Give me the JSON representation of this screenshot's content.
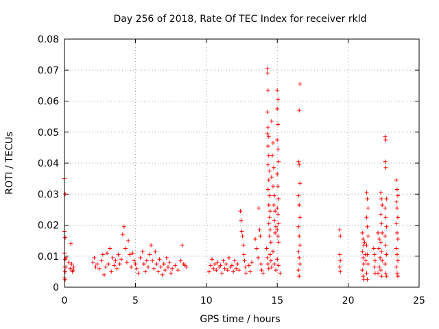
{
  "chart_data": {
    "type": "scatter",
    "title": "Day 256 of 2018, Rate Of TEC Index for receiver rkld",
    "xlabel": "GPS time / hours",
    "ylabel": "ROTI / TECUs",
    "xlim": [
      0,
      25
    ],
    "ylim": [
      0,
      0.08
    ],
    "xticks": [
      "0",
      "5",
      "10",
      "15",
      "20",
      "25"
    ],
    "yticks": [
      "0",
      "0.01",
      "0.02",
      "0.03",
      "0.04",
      "0.05",
      "0.06",
      "0.07",
      "0.08"
    ],
    "grid": true,
    "marker": "+",
    "color": "#ff0000",
    "series": [
      {
        "name": "ROTI",
        "points": [
          [
            0.0,
            0.035
          ],
          [
            0.0,
            0.018
          ],
          [
            0.05,
            0.016
          ],
          [
            0.0,
            0.011
          ],
          [
            0.05,
            0.009
          ],
          [
            0.0,
            0.0065
          ],
          [
            0.05,
            0.005
          ],
          [
            0.0,
            0.003
          ],
          [
            0.05,
            0.0025
          ],
          [
            0.1,
            0.0065
          ],
          [
            0.05,
            0.03
          ],
          [
            0.1,
            0.0095
          ],
          [
            0.3,
            0.008
          ],
          [
            0.4,
            0.006
          ],
          [
            0.45,
            0.014
          ],
          [
            0.5,
            0.0075
          ],
          [
            0.55,
            0.005
          ],
          [
            0.6,
            0.0055
          ],
          [
            0.65,
            0.0065
          ],
          [
            2.0,
            0.008
          ],
          [
            2.1,
            0.0095
          ],
          [
            2.2,
            0.0065
          ],
          [
            2.3,
            0.0075
          ],
          [
            2.45,
            0.006
          ],
          [
            2.6,
            0.0085
          ],
          [
            2.7,
            0.0105
          ],
          [
            2.8,
            0.004
          ],
          [
            2.9,
            0.0065
          ],
          [
            3.0,
            0.011
          ],
          [
            3.1,
            0.0075
          ],
          [
            3.2,
            0.0125
          ],
          [
            3.3,
            0.005
          ],
          [
            3.4,
            0.0095
          ],
          [
            3.5,
            0.007
          ],
          [
            3.6,
            0.0085
          ],
          [
            3.7,
            0.006
          ],
          [
            3.8,
            0.0105
          ],
          [
            3.9,
            0.0075
          ],
          [
            4.0,
            0.009
          ],
          [
            4.1,
            0.017
          ],
          [
            4.2,
            0.0195
          ],
          [
            4.3,
            0.0125
          ],
          [
            4.4,
            0.008
          ],
          [
            4.5,
            0.015
          ],
          [
            4.6,
            0.0105
          ],
          [
            4.7,
            0.0065
          ],
          [
            4.8,
            0.011
          ],
          [
            4.9,
            0.0085
          ],
          [
            5.0,
            0.0075
          ],
          [
            5.1,
            0.006
          ],
          [
            5.2,
            0.0045
          ],
          [
            5.35,
            0.0095
          ],
          [
            5.5,
            0.0115
          ],
          [
            5.6,
            0.0075
          ],
          [
            5.7,
            0.005
          ],
          [
            5.8,
            0.0085
          ],
          [
            5.9,
            0.0065
          ],
          [
            6.0,
            0.0105
          ],
          [
            6.1,
            0.0135
          ],
          [
            6.2,
            0.0085
          ],
          [
            6.3,
            0.006
          ],
          [
            6.4,
            0.0115
          ],
          [
            6.5,
            0.0075
          ],
          [
            6.6,
            0.005
          ],
          [
            6.7,
            0.009
          ],
          [
            6.8,
            0.0065
          ],
          [
            6.9,
            0.004
          ],
          [
            7.0,
            0.0075
          ],
          [
            7.1,
            0.0055
          ],
          [
            7.2,
            0.0095
          ],
          [
            7.3,
            0.0065
          ],
          [
            7.4,
            0.008
          ],
          [
            7.5,
            0.0045
          ],
          [
            7.6,
            0.006
          ],
          [
            7.8,
            0.007
          ],
          [
            8.0,
            0.0055
          ],
          [
            8.2,
            0.0085
          ],
          [
            8.3,
            0.0135
          ],
          [
            8.4,
            0.0075
          ],
          [
            8.5,
            0.007
          ],
          [
            8.6,
            0.0065
          ],
          [
            10.2,
            0.005
          ],
          [
            10.3,
            0.007
          ],
          [
            10.4,
            0.009
          ],
          [
            10.5,
            0.006
          ],
          [
            10.6,
            0.0075
          ],
          [
            10.7,
            0.0055
          ],
          [
            10.8,
            0.008
          ],
          [
            10.9,
            0.0065
          ],
          [
            11.0,
            0.007
          ],
          [
            11.1,
            0.0045
          ],
          [
            11.2,
            0.0085
          ],
          [
            11.3,
            0.006
          ],
          [
            11.4,
            0.0075
          ],
          [
            11.5,
            0.0055
          ],
          [
            11.6,
            0.0095
          ],
          [
            11.7,
            0.0065
          ],
          [
            11.8,
            0.007
          ],
          [
            11.9,
            0.005
          ],
          [
            12.0,
            0.0085
          ],
          [
            12.1,
            0.006
          ],
          [
            12.2,
            0.0075
          ],
          [
            12.3,
            0.0055
          ],
          [
            12.4,
            0.0245
          ],
          [
            12.45,
            0.0215
          ],
          [
            12.5,
            0.018
          ],
          [
            12.55,
            0.0165
          ],
          [
            12.6,
            0.0135
          ],
          [
            12.65,
            0.0105
          ],
          [
            12.7,
            0.0085
          ],
          [
            12.75,
            0.0065
          ],
          [
            12.8,
            0.0045
          ],
          [
            13.0,
            0.007
          ],
          [
            13.1,
            0.005
          ],
          [
            13.2,
            0.008
          ],
          [
            13.45,
            0.0155
          ],
          [
            13.55,
            0.0125
          ],
          [
            13.65,
            0.0095
          ],
          [
            13.7,
            0.0255
          ],
          [
            13.75,
            0.0185
          ],
          [
            13.8,
            0.0165
          ],
          [
            13.85,
            0.0075
          ],
          [
            13.9,
            0.0055
          ],
          [
            14.0,
            0.0045
          ],
          [
            14.25,
            0.0125
          ],
          [
            14.3,
            0.0095
          ],
          [
            14.35,
            0.0075
          ],
          [
            14.4,
            0.006
          ],
          [
            14.5,
            0.0105
          ],
          [
            14.55,
            0.0085
          ],
          [
            14.6,
            0.0065
          ],
          [
            14.7,
            0.0115
          ],
          [
            14.8,
            0.0075
          ],
          [
            14.9,
            0.0055
          ],
          [
            15.0,
            0.009
          ],
          [
            15.1,
            0.007
          ],
          [
            15.2,
            0.0045
          ],
          [
            14.3,
            0.0705
          ],
          [
            14.32,
            0.069
          ],
          [
            14.35,
            0.0635
          ],
          [
            14.3,
            0.0565
          ],
          [
            14.35,
            0.0515
          ],
          [
            14.3,
            0.0495
          ],
          [
            14.4,
            0.0485
          ],
          [
            14.35,
            0.0455
          ],
          [
            14.4,
            0.0425
          ],
          [
            14.35,
            0.0395
          ],
          [
            14.45,
            0.0375
          ],
          [
            14.4,
            0.0345
          ],
          [
            14.35,
            0.0315
          ],
          [
            14.45,
            0.0295
          ],
          [
            14.4,
            0.0265
          ],
          [
            14.5,
            0.0245
          ],
          [
            14.45,
            0.0225
          ],
          [
            14.4,
            0.0205
          ],
          [
            14.5,
            0.0185
          ],
          [
            14.45,
            0.0165
          ],
          [
            14.55,
            0.0145
          ],
          [
            14.6,
            0.0535
          ],
          [
            14.7,
            0.0465
          ],
          [
            14.65,
            0.0425
          ],
          [
            14.75,
            0.0385
          ],
          [
            14.6,
            0.0355
          ],
          [
            14.7,
            0.0325
          ],
          [
            14.8,
            0.0295
          ],
          [
            14.75,
            0.0265
          ],
          [
            14.85,
            0.0245
          ],
          [
            14.8,
            0.0215
          ],
          [
            14.9,
            0.0195
          ],
          [
            14.85,
            0.0175
          ],
          [
            15.0,
            0.0635
          ],
          [
            15.05,
            0.0605
          ],
          [
            15.0,
            0.0575
          ],
          [
            15.05,
            0.0525
          ],
          [
            15.0,
            0.0475
          ],
          [
            15.05,
            0.0445
          ],
          [
            15.1,
            0.0405
          ],
          [
            15.0,
            0.0365
          ],
          [
            15.05,
            0.0325
          ],
          [
            15.1,
            0.0285
          ],
          [
            15.0,
            0.0255
          ],
          [
            15.05,
            0.0235
          ],
          [
            15.1,
            0.0205
          ],
          [
            15.0,
            0.0185
          ],
          [
            15.05,
            0.0165
          ],
          [
            15.1,
            0.0145
          ],
          [
            16.6,
            0.0655
          ],
          [
            16.55,
            0.057
          ],
          [
            16.5,
            0.0405
          ],
          [
            16.55,
            0.0395
          ],
          [
            16.6,
            0.0335
          ],
          [
            16.5,
            0.0295
          ],
          [
            16.55,
            0.0265
          ],
          [
            16.6,
            0.0225
          ],
          [
            16.5,
            0.0195
          ],
          [
            16.55,
            0.0165
          ],
          [
            16.6,
            0.0135
          ],
          [
            16.5,
            0.0115
          ],
          [
            16.55,
            0.0095
          ],
          [
            16.6,
            0.0075
          ],
          [
            16.5,
            0.0055
          ],
          [
            16.55,
            0.0035
          ],
          [
            19.4,
            0.0185
          ],
          [
            19.45,
            0.0165
          ],
          [
            19.4,
            0.0105
          ],
          [
            19.45,
            0.0085
          ],
          [
            19.4,
            0.0065
          ],
          [
            19.45,
            0.005
          ],
          [
            21.0,
            0.0175
          ],
          [
            21.05,
            0.0155
          ],
          [
            21.1,
            0.0135
          ],
          [
            21.0,
            0.0115
          ],
          [
            21.05,
            0.0095
          ],
          [
            21.1,
            0.0075
          ],
          [
            21.0,
            0.0055
          ],
          [
            21.05,
            0.0035
          ],
          [
            21.1,
            0.0025
          ],
          [
            21.15,
            0.0145
          ],
          [
            21.2,
            0.0105
          ],
          [
            21.25,
            0.0085
          ],
          [
            21.3,
            0.0305
          ],
          [
            21.35,
            0.0285
          ],
          [
            21.4,
            0.0255
          ],
          [
            21.3,
            0.0225
          ],
          [
            21.35,
            0.0195
          ],
          [
            21.4,
            0.0165
          ],
          [
            21.3,
            0.0135
          ],
          [
            21.35,
            0.0105
          ],
          [
            21.4,
            0.0075
          ],
          [
            21.3,
            0.0045
          ],
          [
            21.35,
            0.0025
          ],
          [
            21.8,
            0.0125
          ],
          [
            21.85,
            0.0105
          ],
          [
            21.9,
            0.0085
          ],
          [
            21.85,
            0.0065
          ],
          [
            21.9,
            0.0045
          ],
          [
            22.1,
            0.0175
          ],
          [
            22.2,
            0.0155
          ],
          [
            22.15,
            0.0125
          ],
          [
            22.25,
            0.0095
          ],
          [
            22.2,
            0.0065
          ],
          [
            22.1,
            0.0045
          ],
          [
            22.3,
            0.0305
          ],
          [
            22.35,
            0.0285
          ],
          [
            22.4,
            0.0265
          ],
          [
            22.3,
            0.0235
          ],
          [
            22.35,
            0.0205
          ],
          [
            22.4,
            0.0175
          ],
          [
            22.3,
            0.0145
          ],
          [
            22.35,
            0.0115
          ],
          [
            22.4,
            0.0085
          ],
          [
            22.3,
            0.0055
          ],
          [
            22.35,
            0.0035
          ],
          [
            22.6,
            0.0485
          ],
          [
            22.65,
            0.0475
          ],
          [
            22.6,
            0.0405
          ],
          [
            22.65,
            0.0385
          ],
          [
            22.7,
            0.0285
          ],
          [
            22.6,
            0.0255
          ],
          [
            22.65,
            0.0225
          ],
          [
            22.7,
            0.0195
          ],
          [
            22.6,
            0.0165
          ],
          [
            22.65,
            0.0135
          ],
          [
            22.7,
            0.0105
          ],
          [
            22.6,
            0.0075
          ],
          [
            22.65,
            0.0045
          ],
          [
            22.7,
            0.0035
          ],
          [
            23.4,
            0.0345
          ],
          [
            23.45,
            0.0315
          ],
          [
            23.5,
            0.0295
          ],
          [
            23.4,
            0.0275
          ],
          [
            23.45,
            0.0255
          ],
          [
            23.5,
            0.0225
          ],
          [
            23.4,
            0.0205
          ],
          [
            23.45,
            0.0175
          ],
          [
            23.5,
            0.0155
          ],
          [
            23.4,
            0.0125
          ],
          [
            23.45,
            0.0105
          ],
          [
            23.5,
            0.0085
          ],
          [
            23.4,
            0.0065
          ],
          [
            23.45,
            0.0045
          ],
          [
            23.5,
            0.0035
          ]
        ]
      }
    ]
  }
}
